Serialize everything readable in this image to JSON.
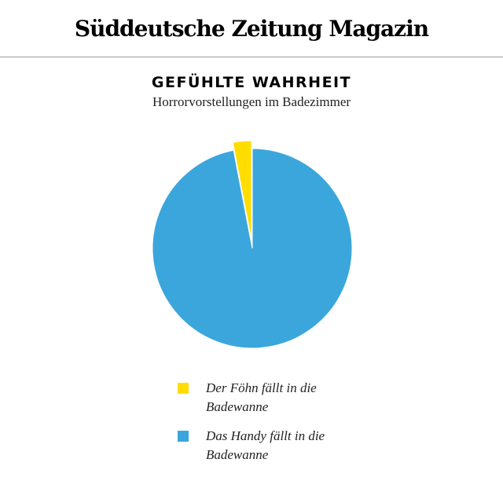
{
  "header": {
    "brand": "Süddeutsche Zeitung Magazin"
  },
  "chart_data": {
    "type": "pie",
    "title": "GEFÜHLTE WAHRHEIT",
    "subtitle": "Horrorvorstellungen im Badezimmer",
    "legend_position": "bottom",
    "slices": [
      {
        "label": "Der Föhn fällt in die Badewanne",
        "value": 3,
        "color": "#ffdd00",
        "exploded": true
      },
      {
        "label": "Das Handy fällt in die Badewanne",
        "value": 97,
        "color": "#3ba6dc",
        "exploded": false
      }
    ],
    "legend": [
      {
        "label": "Der Föhn fällt in die Badewanne",
        "color": "#ffdd00"
      },
      {
        "label": "Das Handy fällt in die Badewanne",
        "color": "#3ba6dc"
      }
    ]
  }
}
